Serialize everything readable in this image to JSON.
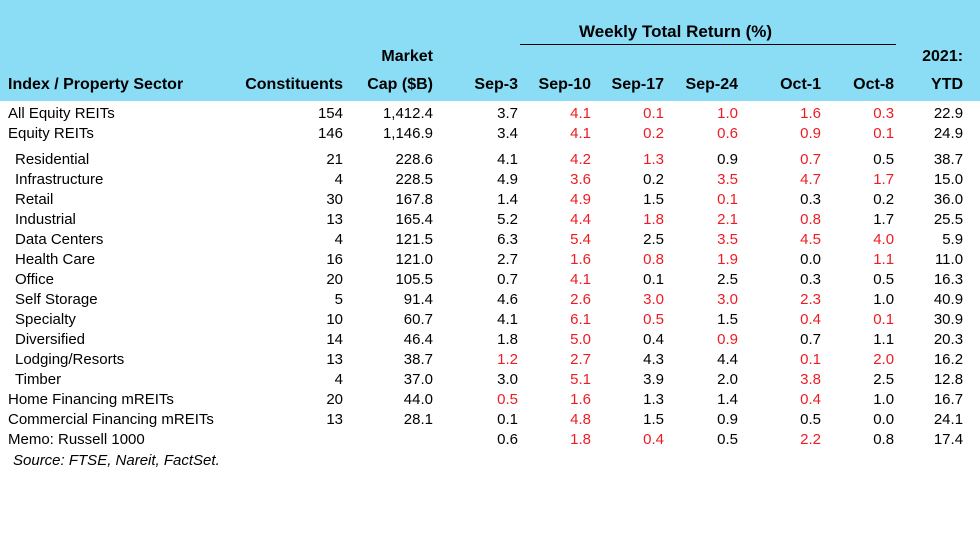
{
  "colors": {
    "header_bg": "#8bdcf5",
    "negative_text": "#ed1c24",
    "normal_text": "#000000"
  },
  "header": {
    "group_label": "Weekly Total Return (%)",
    "sector_col": "Index / Property Sector",
    "constituents_col": "Constituents",
    "market_cap_line1": "Market",
    "market_cap_line2": "Cap ($B)",
    "week_cols": [
      "Sep-3",
      "Sep-10",
      "Sep-17",
      "Sep-24",
      "Oct-1",
      "Oct-8"
    ],
    "ytd_line1": "2021:",
    "ytd_line2": "YTD"
  },
  "chart_data": {
    "type": "table",
    "title": "Weekly Total Return (%)",
    "columns": [
      "Index / Property Sector",
      "Constituents",
      "Market Cap ($B)",
      "Sep-3",
      "Sep-10",
      "Sep-17",
      "Sep-24",
      "Oct-1",
      "Oct-8",
      "2021: YTD"
    ],
    "red_text_is_negative": true,
    "rows": [
      {
        "sector": "All Equity REITs",
        "indent": false,
        "gap_before": false,
        "constituents": "154",
        "market_cap": "1,412.4",
        "weekly": [
          "3.7",
          "4.1",
          "0.1",
          "1.0",
          "1.6",
          "0.3"
        ],
        "red": [
          false,
          true,
          true,
          true,
          true,
          true
        ],
        "ytd": "22.9"
      },
      {
        "sector": "Equity REITs",
        "indent": false,
        "gap_before": false,
        "constituents": "146",
        "market_cap": "1,146.9",
        "weekly": [
          "3.4",
          "4.1",
          "0.2",
          "0.6",
          "0.9",
          "0.1"
        ],
        "red": [
          false,
          true,
          true,
          true,
          true,
          true
        ],
        "ytd": "24.9"
      },
      {
        "sector": "Residential",
        "indent": true,
        "gap_before": true,
        "constituents": "21",
        "market_cap": "228.6",
        "weekly": [
          "4.1",
          "4.2",
          "1.3",
          "0.9",
          "0.7",
          "0.5"
        ],
        "red": [
          false,
          true,
          true,
          false,
          true,
          false
        ],
        "ytd": "38.7"
      },
      {
        "sector": "Infrastructure",
        "indent": true,
        "gap_before": false,
        "constituents": "4",
        "market_cap": "228.5",
        "weekly": [
          "4.9",
          "3.6",
          "0.2",
          "3.5",
          "4.7",
          "1.7"
        ],
        "red": [
          false,
          true,
          false,
          true,
          true,
          true
        ],
        "ytd": "15.0"
      },
      {
        "sector": "Retail",
        "indent": true,
        "gap_before": false,
        "constituents": "30",
        "market_cap": "167.8",
        "weekly": [
          "1.4",
          "4.9",
          "1.5",
          "0.1",
          "0.3",
          "0.2"
        ],
        "red": [
          false,
          true,
          false,
          true,
          false,
          false
        ],
        "ytd": "36.0"
      },
      {
        "sector": "Industrial",
        "indent": true,
        "gap_before": false,
        "constituents": "13",
        "market_cap": "165.4",
        "weekly": [
          "5.2",
          "4.4",
          "1.8",
          "2.1",
          "0.8",
          "1.7"
        ],
        "red": [
          false,
          true,
          true,
          true,
          true,
          false
        ],
        "ytd": "25.5"
      },
      {
        "sector": "Data Centers",
        "indent": true,
        "gap_before": false,
        "constituents": "4",
        "market_cap": "121.5",
        "weekly": [
          "6.3",
          "5.4",
          "2.5",
          "3.5",
          "4.5",
          "4.0"
        ],
        "red": [
          false,
          true,
          false,
          true,
          true,
          true
        ],
        "ytd": "5.9"
      },
      {
        "sector": "Health Care",
        "indent": true,
        "gap_before": false,
        "constituents": "16",
        "market_cap": "121.0",
        "weekly": [
          "2.7",
          "1.6",
          "0.8",
          "1.9",
          "0.0",
          "1.1"
        ],
        "red": [
          false,
          true,
          true,
          true,
          false,
          true
        ],
        "ytd": "11.0"
      },
      {
        "sector": "Office",
        "indent": true,
        "gap_before": false,
        "constituents": "20",
        "market_cap": "105.5",
        "weekly": [
          "0.7",
          "4.1",
          "0.1",
          "2.5",
          "0.3",
          "0.5"
        ],
        "red": [
          false,
          true,
          false,
          false,
          false,
          false
        ],
        "ytd": "16.3"
      },
      {
        "sector": "Self Storage",
        "indent": true,
        "gap_before": false,
        "constituents": "5",
        "market_cap": "91.4",
        "weekly": [
          "4.6",
          "2.6",
          "3.0",
          "3.0",
          "2.3",
          "1.0"
        ],
        "red": [
          false,
          true,
          true,
          true,
          true,
          false
        ],
        "ytd": "40.9"
      },
      {
        "sector": "Specialty",
        "indent": true,
        "gap_before": false,
        "constituents": "10",
        "market_cap": "60.7",
        "weekly": [
          "4.1",
          "6.1",
          "0.5",
          "1.5",
          "0.4",
          "0.1"
        ],
        "red": [
          false,
          true,
          true,
          false,
          true,
          true
        ],
        "ytd": "30.9"
      },
      {
        "sector": "Diversified",
        "indent": true,
        "gap_before": false,
        "constituents": "14",
        "market_cap": "46.4",
        "weekly": [
          "1.8",
          "5.0",
          "0.4",
          "0.9",
          "0.7",
          "1.1"
        ],
        "red": [
          false,
          true,
          false,
          true,
          false,
          false
        ],
        "ytd": "20.3"
      },
      {
        "sector": "Lodging/Resorts",
        "indent": true,
        "gap_before": false,
        "constituents": "13",
        "market_cap": "38.7",
        "weekly": [
          "1.2",
          "2.7",
          "4.3",
          "4.4",
          "0.1",
          "2.0"
        ],
        "red": [
          true,
          true,
          false,
          false,
          true,
          true
        ],
        "ytd": "16.2"
      },
      {
        "sector": "Timber",
        "indent": true,
        "gap_before": false,
        "constituents": "4",
        "market_cap": "37.0",
        "weekly": [
          "3.0",
          "5.1",
          "3.9",
          "2.0",
          "3.8",
          "2.5"
        ],
        "red": [
          false,
          true,
          false,
          false,
          true,
          false
        ],
        "ytd": "12.8"
      },
      {
        "sector": "Home Financing mREITs",
        "indent": false,
        "gap_before": false,
        "constituents": "20",
        "market_cap": "44.0",
        "weekly": [
          "0.5",
          "1.6",
          "1.3",
          "1.4",
          "0.4",
          "1.0"
        ],
        "red": [
          true,
          true,
          false,
          false,
          true,
          false
        ],
        "ytd": "16.7"
      },
      {
        "sector": "Commercial Financing mREITs",
        "indent": false,
        "gap_before": false,
        "constituents": "13",
        "market_cap": "28.1",
        "weekly": [
          "0.1",
          "4.8",
          "1.5",
          "0.9",
          "0.5",
          "0.0"
        ],
        "red": [
          false,
          true,
          false,
          false,
          false,
          false
        ],
        "ytd": "24.1"
      },
      {
        "sector": "Memo: Russell 1000",
        "indent": false,
        "gap_before": false,
        "constituents": "",
        "market_cap": "",
        "weekly": [
          "0.6",
          "1.8",
          "0.4",
          "0.5",
          "2.2",
          "0.8"
        ],
        "red": [
          false,
          true,
          true,
          false,
          true,
          false
        ],
        "ytd": "17.4"
      }
    ],
    "source": "Source: FTSE, Nareit, FactSet."
  }
}
